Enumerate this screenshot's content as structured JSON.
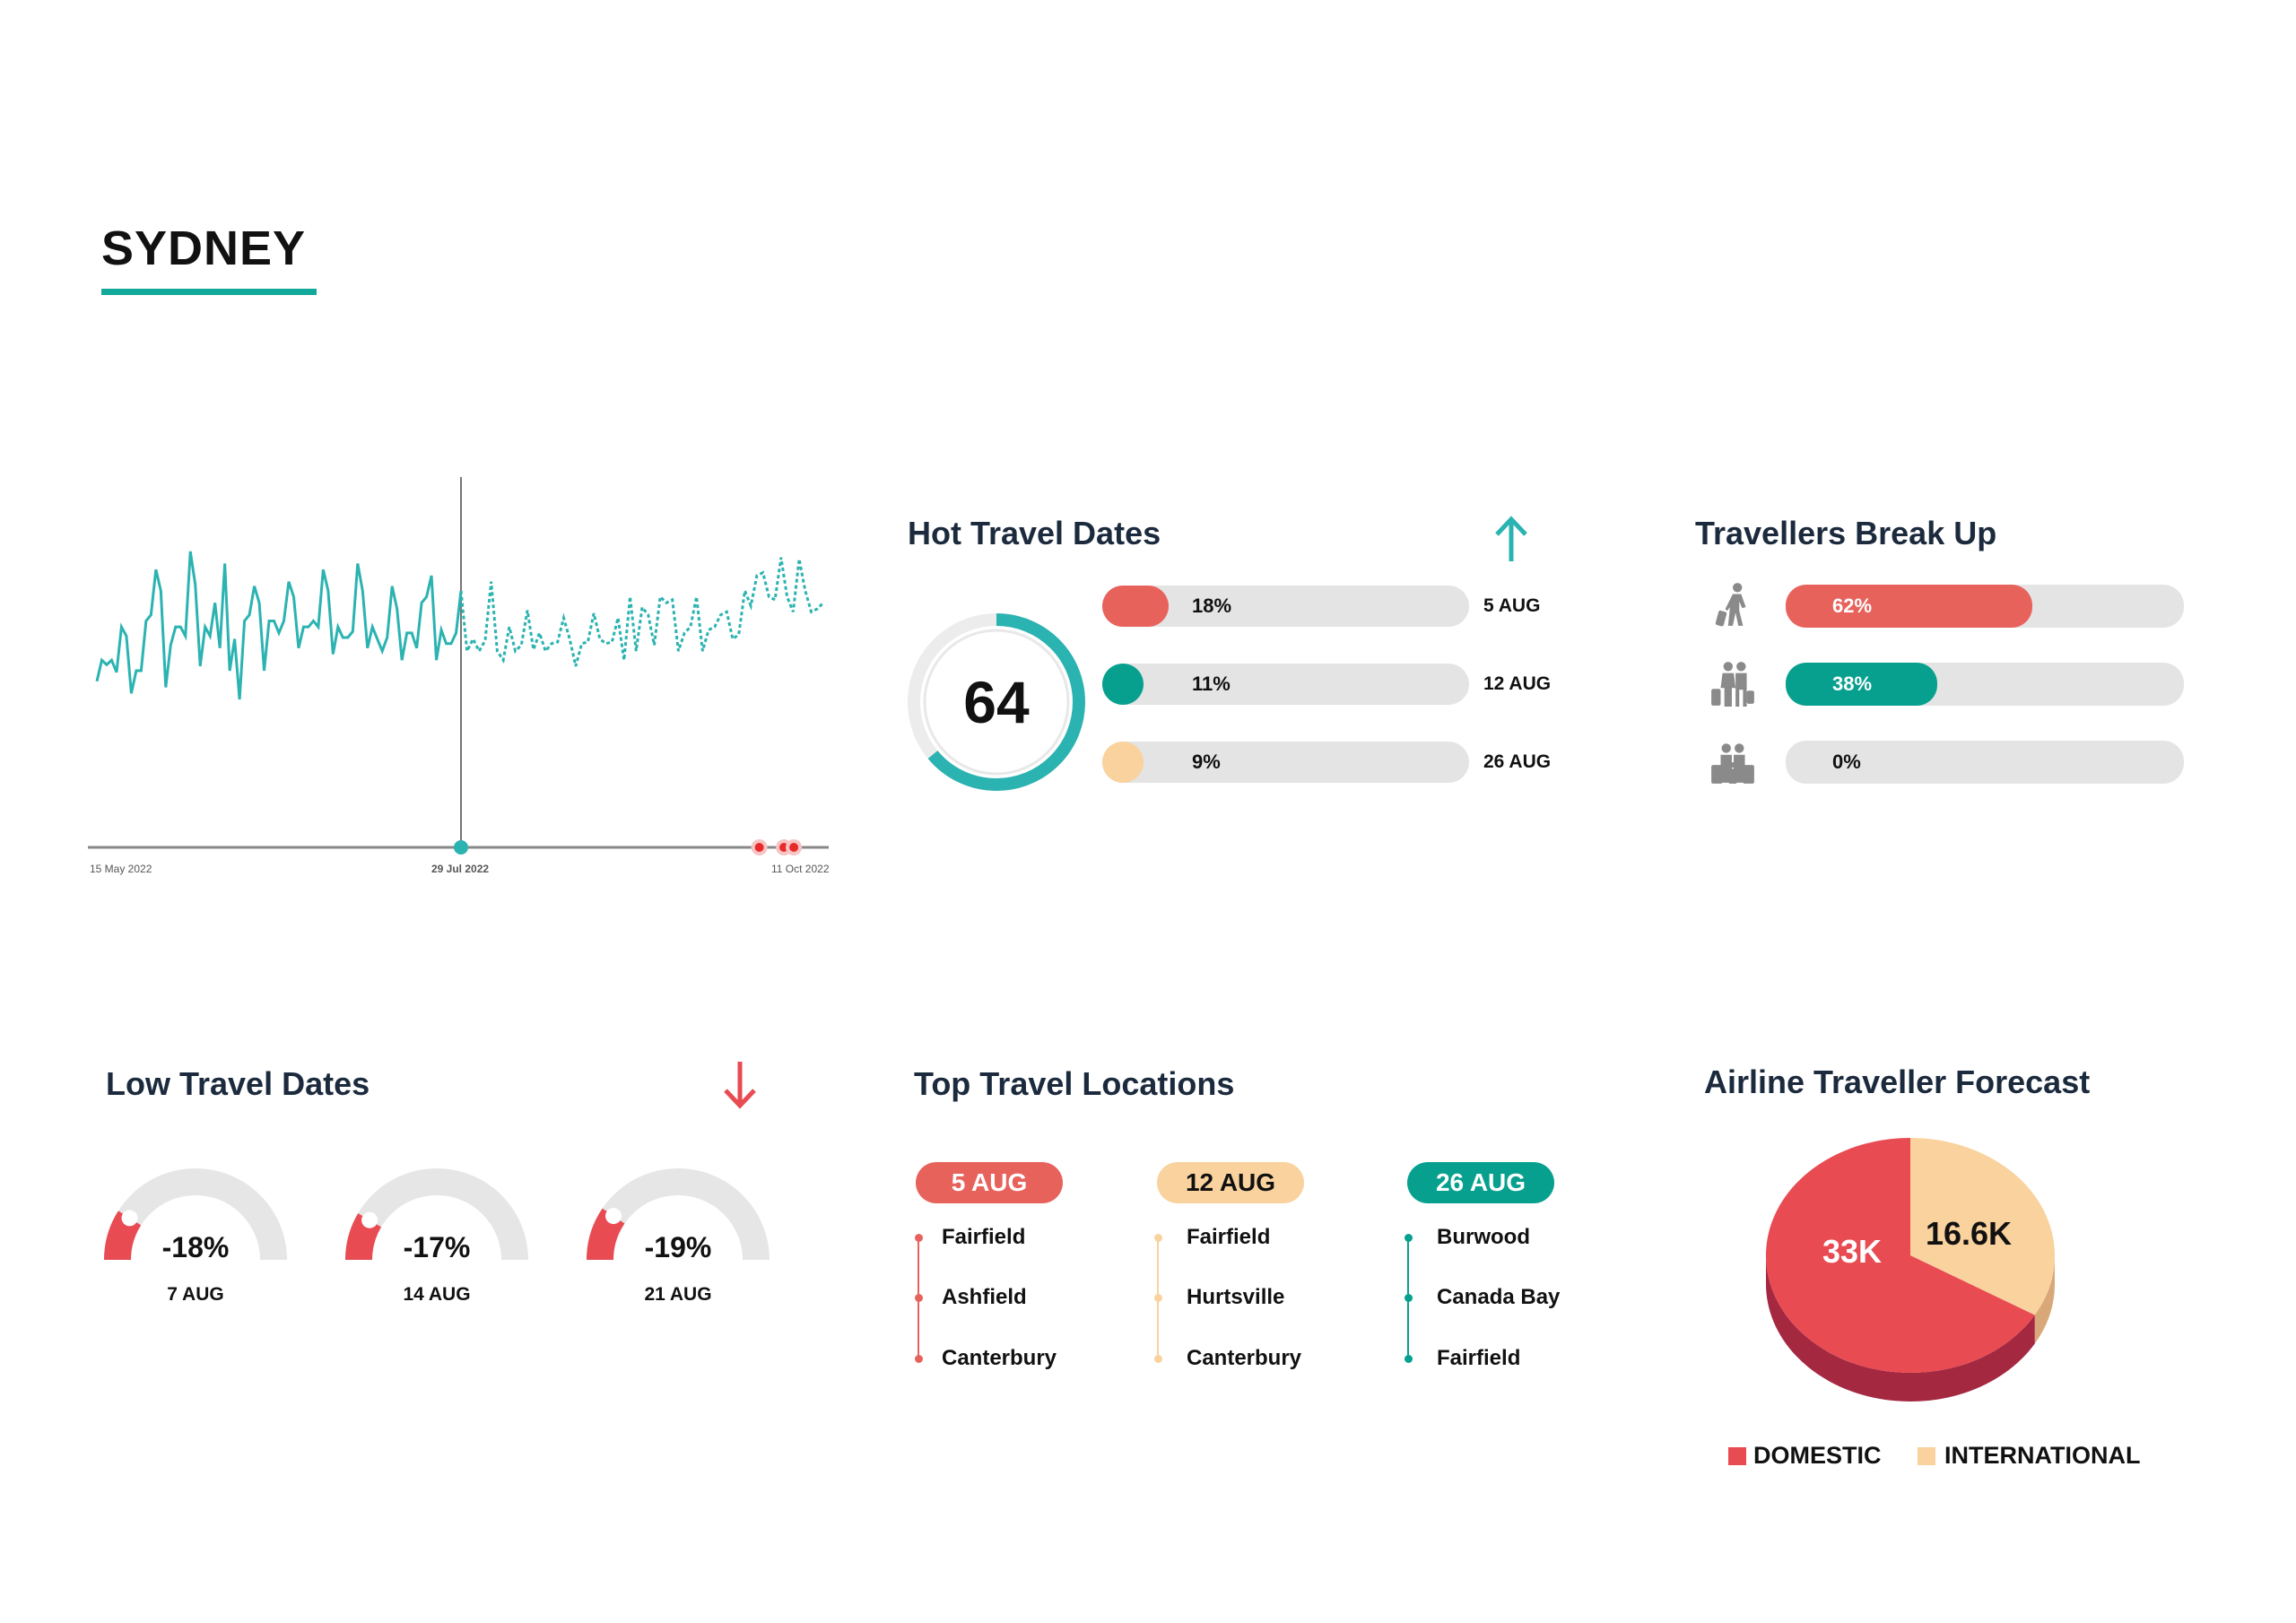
{
  "header": {
    "title": "SYDNEY"
  },
  "colors": {
    "teal": "#2bb3b1",
    "teal_dark": "#07a08f",
    "coral": "#e8625c",
    "red": "#e84b52",
    "peach": "#f9d29e",
    "dark_red": "#a52841",
    "gray_track": "#e4e4e4",
    "navy": "#1b2a3d"
  },
  "chart_data": [
    {
      "type": "line",
      "title": "",
      "x_tick_labels": [
        "15 May 2022",
        "29 Jul 2022",
        "11 Oct 2022"
      ],
      "x_range": [
        "15 May 2022",
        "11 Oct 2022"
      ],
      "y_axis_visible": false,
      "grid": false,
      "series": [
        {
          "style": "solid",
          "x_start": "15 May 2022",
          "x_end": "29 Jul 2022",
          "values": [
            20,
            34,
            31,
            34,
            26,
            56,
            50,
            12,
            27,
            27,
            60,
            64,
            94,
            80,
            16,
            44,
            56,
            56,
            50,
            106,
            84,
            30,
            56,
            50,
            72,
            42,
            98,
            27,
            48,
            8,
            60,
            64,
            83,
            72,
            27,
            60,
            60,
            52,
            60,
            86,
            76,
            42,
            56,
            56,
            60,
            56,
            94,
            80,
            38,
            56,
            49,
            49,
            53,
            98,
            80,
            42,
            56,
            48,
            40,
            49,
            83,
            68,
            34,
            52,
            52,
            42,
            72,
            76,
            90,
            34,
            54,
            45,
            45,
            52,
            80
          ]
        },
        {
          "style": "dashed",
          "x_start": "29 Jul 2022",
          "x_end": "11 Oct 2022",
          "values": [
            80,
            40,
            48,
            40,
            47,
            86,
            40,
            34,
            56,
            40,
            44,
            67,
            41,
            52,
            40,
            45,
            46,
            62,
            48,
            30,
            45,
            46,
            65,
            48,
            45,
            46,
            62,
            34,
            76,
            40,
            69,
            64,
            44,
            76,
            72,
            74,
            40,
            52,
            56,
            76,
            40,
            54,
            56,
            64,
            66,
            48,
            51,
            80,
            70,
            90,
            92,
            76,
            74,
            102,
            76,
            66,
            101,
            80,
            66,
            68,
            72
          ]
        }
      ],
      "current_marker": {
        "date": "29 Jul 2022",
        "color": "#2bb3b1"
      },
      "event_markers": [
        {
          "date": "28 Sep 2022"
        },
        {
          "date": "3 Oct 2022"
        },
        {
          "date": "5 Oct 2022"
        }
      ]
    },
    {
      "type": "pie",
      "title": "Airline Traveller Forecast",
      "slices": [
        {
          "name": "DOMESTIC",
          "value": 33000,
          "label": "33K",
          "color": "#e84b52"
        },
        {
          "name": "INTERNATIONAL",
          "value": 16600,
          "label": "16.6K",
          "color": "#f9d29e"
        }
      ],
      "legend_position": "bottom"
    }
  ],
  "hot_travel": {
    "title": "Hot Travel Dates",
    "icon": "arrow-up-icon",
    "score": "64",
    "score_fill_percent": 64,
    "rows": [
      {
        "percent": 18,
        "label": "18%",
        "date": "5 AUG",
        "color": "#e8625c"
      },
      {
        "percent": 11,
        "label": "11%",
        "date": "12 AUG",
        "color": "#07a08f"
      },
      {
        "percent": 9,
        "label": "9%",
        "date": "26 AUG",
        "color": "#f9d29e"
      }
    ]
  },
  "travellers": {
    "title": "Travellers Break Up",
    "rows": [
      {
        "icon": "solo-traveller-icon",
        "percent": 62,
        "label": "62%",
        "color": "#e8625c"
      },
      {
        "icon": "couple-traveller-icon",
        "percent": 38,
        "label": "38%",
        "color": "#07a08f"
      },
      {
        "icon": "family-traveller-icon",
        "percent": 0,
        "label": "0%",
        "color": "#07a08f"
      }
    ]
  },
  "low_travel": {
    "title": "Low Travel Dates",
    "icon": "arrow-down-icon",
    "gauges": [
      {
        "value": -18,
        "label": "-18%",
        "date": "7 AUG"
      },
      {
        "value": -17,
        "label": "-17%",
        "date": "14 AUG"
      },
      {
        "value": -19,
        "label": "-19%",
        "date": "21 AUG"
      }
    ]
  },
  "top_locations": {
    "title": "Top Travel Locations",
    "columns": [
      {
        "date": "5 AUG",
        "color": "#e8625c",
        "text_color": "#ffffff",
        "items": [
          "Fairfield",
          "Ashfield",
          "Canterbury"
        ]
      },
      {
        "date": "12 AUG",
        "color": "#f9d29e",
        "text_color": "#111111",
        "items": [
          "Fairfield",
          "Hurtsville",
          "Canterbury"
        ]
      },
      {
        "date": "26 AUG",
        "color": "#07a08f",
        "text_color": "#ffffff",
        "items": [
          "Burwood",
          "Canada Bay",
          "Fairfield"
        ]
      }
    ]
  },
  "forecast": {
    "title": "Airline Traveller Forecast",
    "legend": [
      {
        "label": "DOMESTIC",
        "color": "#e84b52"
      },
      {
        "label": "INTERNATIONAL",
        "color": "#f9d29e"
      }
    ]
  }
}
